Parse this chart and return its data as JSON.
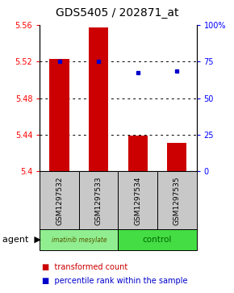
{
  "title": "GDS5405 / 202871_at",
  "samples": [
    "GSM1297532",
    "GSM1297533",
    "GSM1297534",
    "GSM1297535"
  ],
  "bar_values": [
    5.523,
    5.557,
    5.439,
    5.431
  ],
  "bar_baseline": 5.4,
  "blue_dot_values": [
    5.52,
    5.52,
    5.508,
    5.51
  ],
  "ylim_left": [
    5.4,
    5.56
  ],
  "ylim_right": [
    0,
    100
  ],
  "yticks_left": [
    5.4,
    5.44,
    5.48,
    5.52,
    5.56
  ],
  "yticks_right": [
    0,
    25,
    50,
    75,
    100
  ],
  "ytick_labels_left": [
    "5.4",
    "5.44",
    "5.48",
    "5.52",
    "5.56"
  ],
  "ytick_labels_right": [
    "0",
    "25",
    "50",
    "75",
    "100%"
  ],
  "bar_color": "#CC0000",
  "dot_color": "#0000CC",
  "bar_width": 0.5,
  "sample_bg_color": "#C8C8C8",
  "imatinib_color": "#90EE90",
  "control_color": "#44DD44",
  "legend_bar_label": "transformed count",
  "legend_dot_label": "percentile rank within the sample",
  "title_fontsize": 10,
  "tick_fontsize": 7,
  "sample_fontsize": 6.5,
  "agent_fontsize": 8,
  "legend_fontsize": 7,
  "group_fontsize": 7.5
}
